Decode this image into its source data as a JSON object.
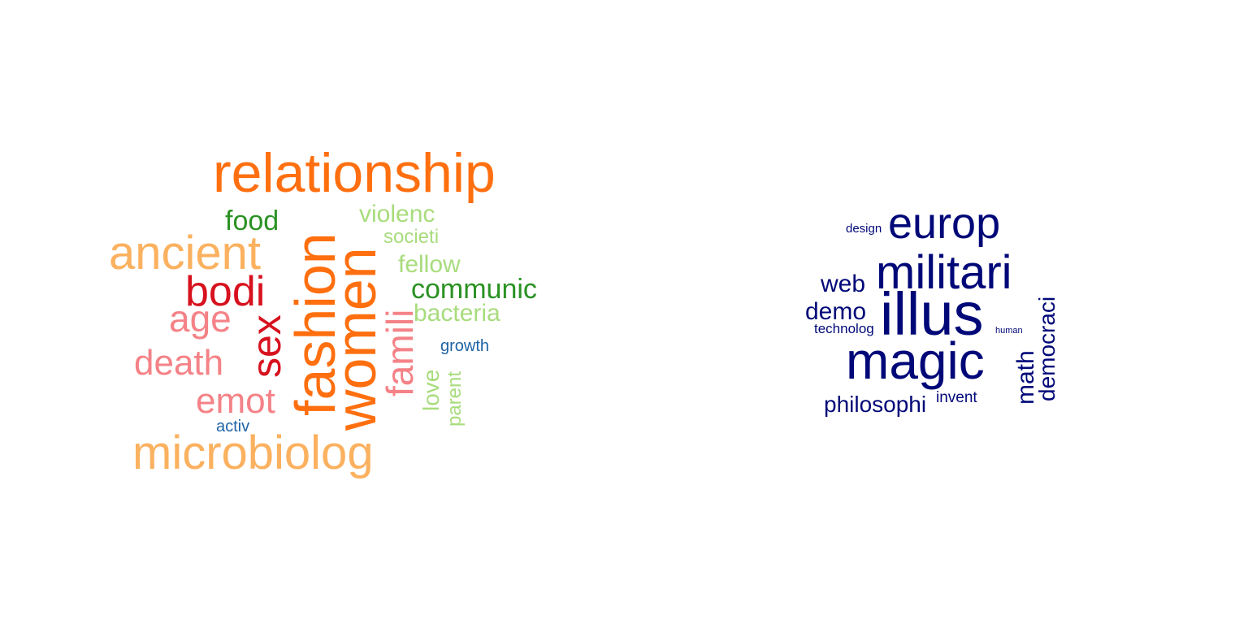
{
  "colors": {
    "dark_orange": "#ff6f0f",
    "light_orange": "#fbb15f",
    "green": "#2a9223",
    "light_green": "#a8dc7d",
    "red": "#d7111d",
    "pink": "#f48287",
    "blue": "#1f64a5",
    "navy": "#000878"
  },
  "cloud_left": {
    "words": [
      {
        "text": "relationship",
        "color": "dark_orange"
      },
      {
        "text": "food",
        "color": "green"
      },
      {
        "text": "violenc",
        "color": "light_green"
      },
      {
        "text": "societi",
        "color": "light_green"
      },
      {
        "text": "ancient",
        "color": "light_orange"
      },
      {
        "text": "fellow",
        "color": "light_green"
      },
      {
        "text": "bodi",
        "color": "red"
      },
      {
        "text": "communic",
        "color": "green"
      },
      {
        "text": "age",
        "color": "pink"
      },
      {
        "text": "bacteria",
        "color": "light_green"
      },
      {
        "text": "growth",
        "color": "blue"
      },
      {
        "text": "death",
        "color": "pink"
      },
      {
        "text": "emot",
        "color": "pink"
      },
      {
        "text": "activ",
        "color": "blue"
      },
      {
        "text": "microbiolog",
        "color": "light_orange"
      },
      {
        "text": "fashion",
        "color": "dark_orange"
      },
      {
        "text": "women",
        "color": "dark_orange"
      },
      {
        "text": "sex",
        "color": "red"
      },
      {
        "text": "famili",
        "color": "pink"
      },
      {
        "text": "love",
        "color": "light_green"
      },
      {
        "text": "parent",
        "color": "light_green"
      }
    ]
  },
  "cloud_right": {
    "words": [
      {
        "text": "design",
        "color": "navy"
      },
      {
        "text": "europ",
        "color": "navy"
      },
      {
        "text": "militari",
        "color": "navy"
      },
      {
        "text": "web",
        "color": "navy"
      },
      {
        "text": "demo",
        "color": "navy"
      },
      {
        "text": "illus",
        "color": "navy"
      },
      {
        "text": "technolog",
        "color": "navy"
      },
      {
        "text": "human",
        "color": "navy"
      },
      {
        "text": "magic",
        "color": "navy"
      },
      {
        "text": "philosophi",
        "color": "navy"
      },
      {
        "text": "invent",
        "color": "navy"
      },
      {
        "text": "math",
        "color": "navy"
      },
      {
        "text": "democraci",
        "color": "navy"
      }
    ]
  }
}
